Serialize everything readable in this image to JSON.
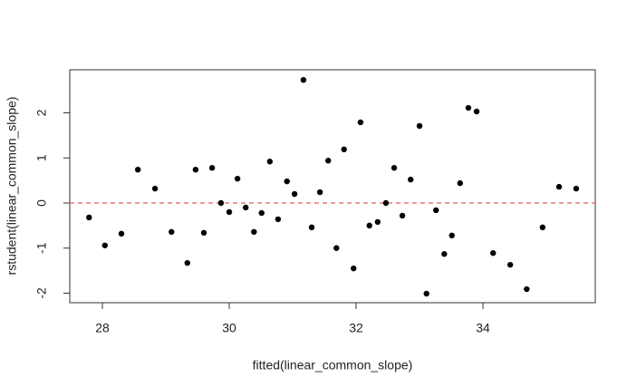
{
  "chart_data": {
    "type": "scatter",
    "x_label": "fitted(linear_common_slope)",
    "y_label": "rstudent(linear_common_slope)",
    "x": [
      27.79,
      28.04,
      28.3,
      28.56,
      28.83,
      29.09,
      29.34,
      29.47,
      29.6,
      29.73,
      29.87,
      30.0,
      30.13,
      30.26,
      30.39,
      30.51,
      30.64,
      30.77,
      30.91,
      31.03,
      31.17,
      31.3,
      31.43,
      31.56,
      31.69,
      31.81,
      31.96,
      32.07,
      32.21,
      32.34,
      32.47,
      32.6,
      32.73,
      32.86,
      33.0,
      33.11,
      33.26,
      33.39,
      33.51,
      33.64,
      33.77,
      33.9,
      34.16,
      34.43,
      34.69,
      34.94,
      35.2,
      35.47
    ],
    "values": [
      -0.32,
      -0.94,
      -0.68,
      0.74,
      0.32,
      -0.64,
      -1.33,
      0.74,
      -0.66,
      0.78,
      0.0,
      -0.2,
      0.54,
      -0.1,
      -0.64,
      -0.22,
      0.92,
      -0.36,
      0.48,
      0.2,
      2.73,
      -0.54,
      0.24,
      0.94,
      -1.0,
      1.19,
      -1.45,
      1.79,
      -0.5,
      -0.42,
      0.0,
      0.78,
      -0.28,
      0.52,
      1.71,
      -2.01,
      -0.16,
      -1.13,
      -0.72,
      0.44,
      2.11,
      2.03,
      -1.11,
      -1.37,
      -1.91,
      -0.54,
      0.36,
      0.32
    ],
    "color": "#000000",
    "reference_line": 0,
    "reference_color": "#e0605a",
    "xlim": [
      27.486,
      35.771
    ],
    "ylim": [
      -2.211,
      2.955
    ],
    "xticks": [
      28,
      30,
      32,
      34
    ],
    "yticks": [
      -2,
      -1,
      0,
      1,
      2
    ]
  }
}
